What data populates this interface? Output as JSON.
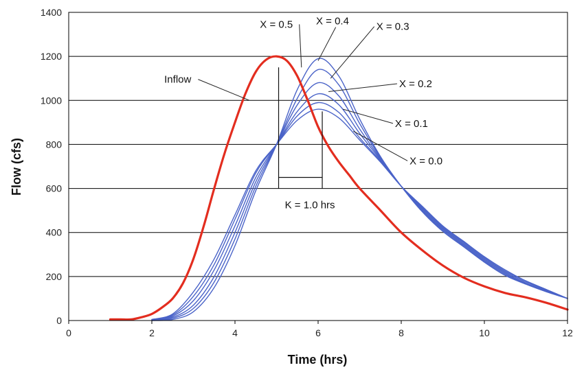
{
  "chart_data": {
    "type": "line",
    "xlabel": "Time (hrs)",
    "ylabel": "Flow (cfs)",
    "xlim": [
      0,
      12
    ],
    "ylim": [
      0,
      1400
    ],
    "x_ticks": [
      0,
      2,
      4,
      6,
      8,
      10,
      12
    ],
    "y_ticks": [
      0,
      200,
      400,
      600,
      800,
      1000,
      1200,
      1400
    ],
    "grid": "horizontal",
    "colors": {
      "inflow": "#e32d1f",
      "outflow": "#4a63c8"
    },
    "series": [
      {
        "name": "Inflow",
        "x": [
          1,
          1.25,
          1.5,
          1.75,
          2,
          2.25,
          2.5,
          2.75,
          3,
          3.25,
          3.5,
          3.75,
          4,
          4.25,
          4.5,
          4.75,
          5,
          5.25,
          5.5,
          5.75,
          6,
          6.25,
          6.5,
          6.75,
          7,
          7.5,
          8,
          8.5,
          9,
          9.5,
          10,
          10.5,
          11,
          11.5,
          12
        ],
        "values": [
          5,
          5,
          5,
          15,
          30,
          60,
          100,
          170,
          280,
          430,
          600,
          760,
          900,
          1030,
          1130,
          1185,
          1200,
          1180,
          1110,
          1000,
          880,
          790,
          720,
          660,
          600,
          500,
          400,
          320,
          250,
          195,
          155,
          125,
          105,
          80,
          50
        ]
      },
      {
        "name": "X = 0.0",
        "x": [
          2,
          2.5,
          3,
          3.5,
          4,
          4.5,
          5,
          5.5,
          6,
          6.5,
          7,
          7.5,
          8,
          8.5,
          9,
          9.5,
          10,
          10.5,
          11,
          11.5,
          12
        ],
        "values": [
          5,
          30,
          130,
          280,
          480,
          680,
          800,
          910,
          960,
          920,
          820,
          720,
          610,
          520,
          430,
          360,
          290,
          230,
          180,
          140,
          100
        ]
      },
      {
        "name": "X = 0.1",
        "x": [
          2,
          2.5,
          3,
          3.5,
          4,
          4.5,
          5,
          5.5,
          6,
          6.5,
          7,
          7.5,
          8,
          8.5,
          9,
          9.5,
          10,
          10.5,
          11,
          11.5,
          12
        ],
        "values": [
          5,
          25,
          110,
          255,
          460,
          670,
          800,
          930,
          990,
          945,
          830,
          725,
          610,
          515,
          425,
          355,
          285,
          225,
          180,
          140,
          100
        ]
      },
      {
        "name": "X = 0.2",
        "x": [
          2,
          2.5,
          3,
          3.5,
          4,
          4.5,
          5,
          5.5,
          6,
          6.5,
          7,
          7.5,
          8,
          8.5,
          9,
          9.5,
          10,
          10.5,
          11,
          11.5,
          12
        ],
        "values": [
          3,
          20,
          90,
          230,
          430,
          650,
          800,
          950,
          1030,
          980,
          850,
          730,
          610,
          510,
          420,
          350,
          280,
          220,
          175,
          138,
          100
        ]
      },
      {
        "name": "X = 0.3",
        "x": [
          2,
          2.5,
          3,
          3.5,
          4,
          4.5,
          5,
          5.5,
          6,
          6.5,
          7,
          7.5,
          8,
          8.5,
          9,
          9.5,
          10,
          10.5,
          11,
          11.5,
          12
        ],
        "values": [
          2,
          15,
          70,
          200,
          400,
          630,
          800,
          980,
          1080,
          1020,
          870,
          735,
          610,
          505,
          415,
          345,
          275,
          215,
          170,
          135,
          100
        ]
      },
      {
        "name": "X = 0.4",
        "x": [
          2,
          2.5,
          3,
          3.5,
          4,
          4.5,
          5,
          5.5,
          6,
          6.5,
          7,
          7.5,
          8,
          8.5,
          9,
          9.5,
          10,
          10.5,
          11,
          11.5,
          12
        ],
        "values": [
          1,
          10,
          55,
          175,
          370,
          610,
          800,
          1010,
          1140,
          1070,
          895,
          740,
          610,
          500,
          410,
          340,
          270,
          210,
          168,
          133,
          100
        ]
      },
      {
        "name": "X = 0.5",
        "x": [
          2,
          2.5,
          3,
          3.5,
          4,
          4.5,
          5,
          5.5,
          6,
          6.5,
          7,
          7.5,
          8,
          8.5,
          9,
          9.5,
          10,
          10.5,
          11,
          11.5,
          12
        ],
        "values": [
          0,
          5,
          40,
          150,
          340,
          590,
          800,
          1050,
          1190,
          1110,
          915,
          745,
          610,
          495,
          405,
          335,
          265,
          205,
          165,
          130,
          100
        ]
      }
    ],
    "annotations": [
      {
        "text": "Inflow",
        "x": 2.3,
        "y": 1080,
        "anchor_x": 4.35,
        "anchor_y": 1000
      },
      {
        "text": "X = 0.5",
        "x": 4.6,
        "y": 1330,
        "anchor_x": 5.6,
        "anchor_y": 1150
      },
      {
        "text": "X = 0.4",
        "x": 5.95,
        "y": 1345,
        "anchor_x": 6.0,
        "anchor_y": 1180
      },
      {
        "text": "X = 0.3",
        "x": 7.4,
        "y": 1320,
        "anchor_x": 6.3,
        "anchor_y": 1100
      },
      {
        "text": "X = 0.2",
        "x": 7.95,
        "y": 1060,
        "anchor_x": 6.25,
        "anchor_y": 1040
      },
      {
        "text": "X = 0.1",
        "x": 7.85,
        "y": 880,
        "anchor_x": 6.6,
        "anchor_y": 960
      },
      {
        "text": "X = 0.0",
        "x": 8.2,
        "y": 710,
        "anchor_x": 6.85,
        "anchor_y": 860
      },
      {
        "text": "K = 1.0 hrs",
        "x": 5.2,
        "y": 510
      }
    ],
    "k_bracket": {
      "x_start": 5.05,
      "x_end": 6.1,
      "y": 650,
      "y_top_start": 1150,
      "y_top_end": 950,
      "y_bottom": 600
    }
  }
}
